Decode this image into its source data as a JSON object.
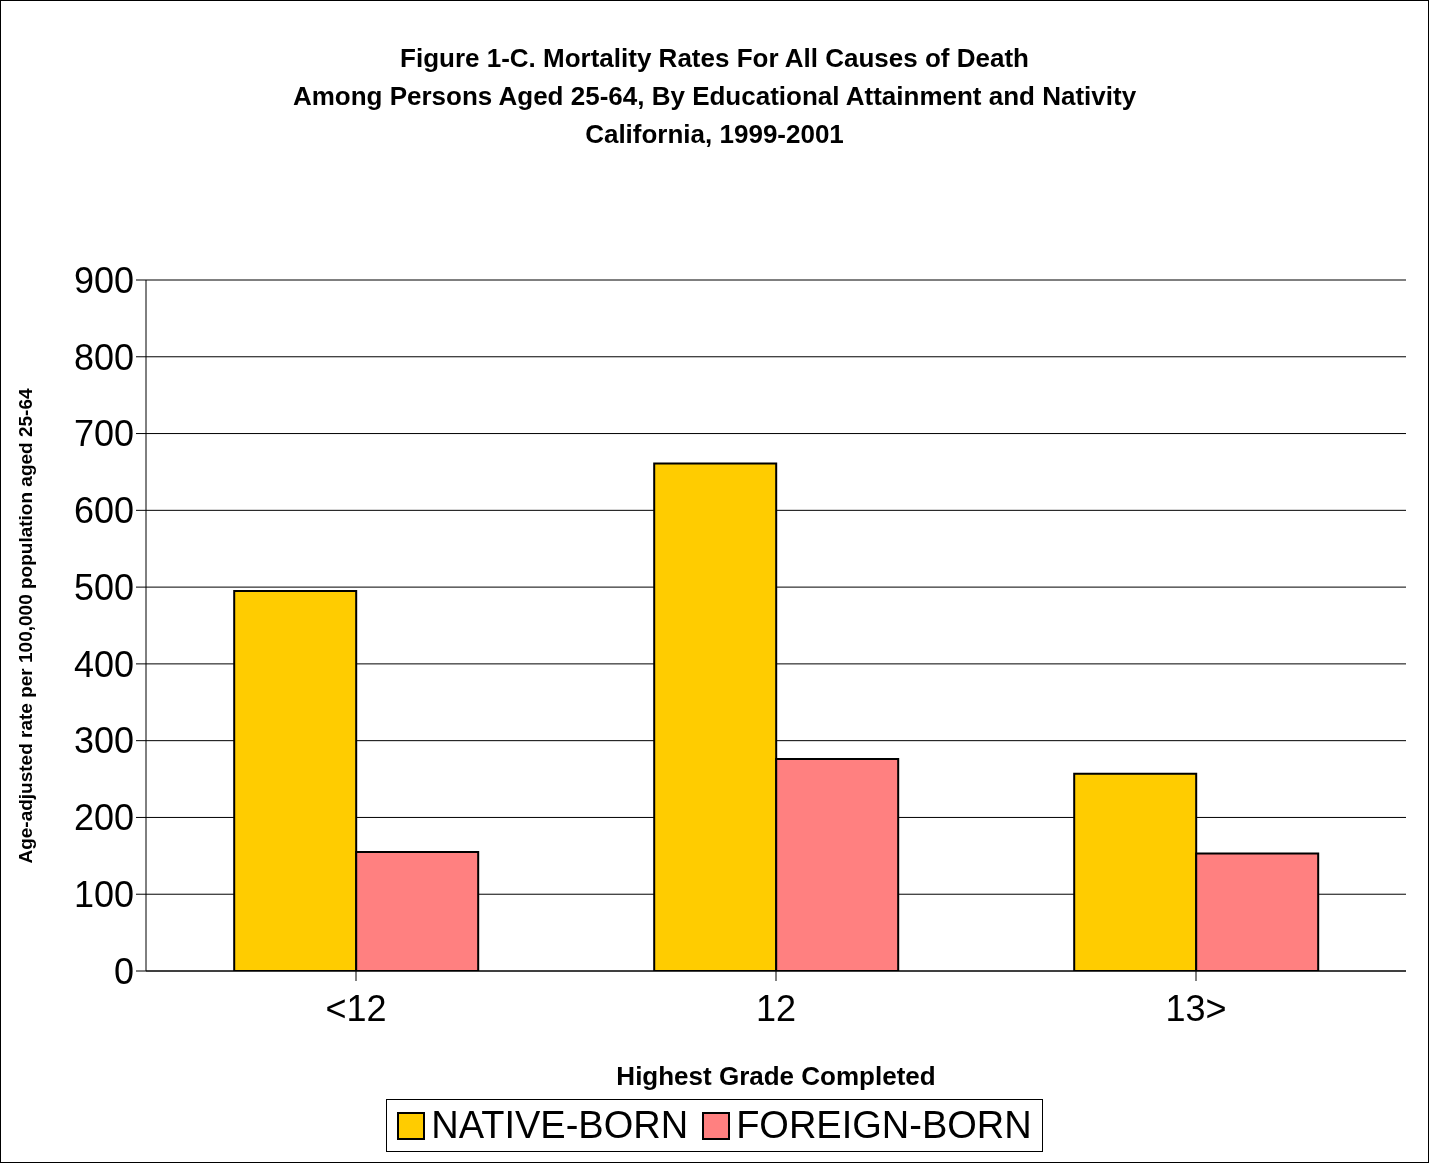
{
  "chart_data": {
    "type": "bar",
    "title": "Figure 1-C.  Mortality Rates For All Causes of Death\nAmong Persons Aged 25-64, By Educational Attainment and Nativity\nCalifornia, 1999-2001",
    "xlabel": "Highest Grade Completed",
    "ylabel": "Age-adjusted rate per 100,000 population aged 25-64",
    "categories": [
      "<12",
      "12",
      "13>"
    ],
    "series": [
      {
        "name": "NATIVE-BORN",
        "color": "#ffcc00",
        "values": [
          495,
          661,
          257
        ]
      },
      {
        "name": "FOREIGN-BORN",
        "color": "#ff8080",
        "values": [
          155,
          276,
          153
        ]
      }
    ],
    "ylim": [
      0,
      900
    ],
    "yticks": [
      0,
      100,
      200,
      300,
      400,
      500,
      600,
      700,
      800,
      900
    ],
    "grid": "y",
    "legend": "bottom"
  }
}
